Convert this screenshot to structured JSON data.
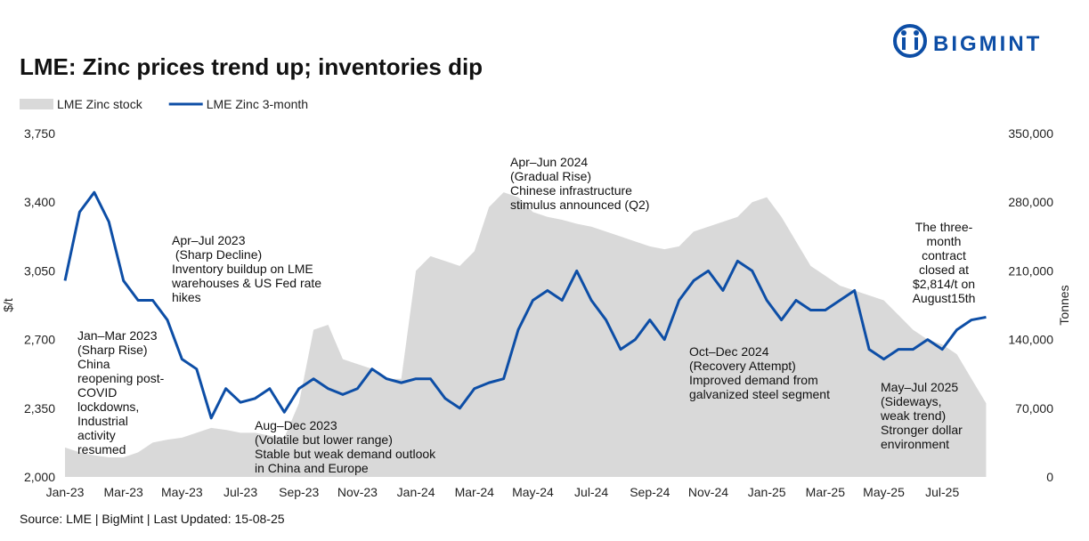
{
  "brand": "BIGMINT",
  "chart_data": {
    "type": "line",
    "title": "LME: Zinc prices trend up; inventories dip",
    "source": "Source: LME | BigMint | Last Updated: 15-08-25",
    "y_label": "$/t",
    "y2_label": "Tonnes",
    "categories": [
      "Jan-23",
      null,
      null,
      null,
      "Mar-23",
      null,
      null,
      null,
      "May-23",
      null,
      null,
      null,
      "Jul-23",
      null,
      null,
      null,
      "Sep-23",
      null,
      null,
      null,
      "Nov-23",
      null,
      null,
      null,
      "Jan-24",
      null,
      null,
      null,
      "Mar-24",
      null,
      null,
      null,
      "May-24",
      null,
      null,
      null,
      "Jul-24",
      null,
      null,
      null,
      "Sep-24",
      null,
      null,
      null,
      "Nov-24",
      null,
      null,
      null,
      "Jan-25",
      null,
      null,
      null,
      "Mar-25",
      null,
      null,
      null,
      "May-25",
      null,
      null,
      null,
      "Jul-25",
      null,
      null,
      null
    ],
    "series": [
      {
        "name": "LME Zinc stock",
        "type": "area",
        "axis": "y2",
        "color": "#d9d9d9",
        "values": [
          30000,
          25000,
          22000,
          20000,
          20000,
          25000,
          35000,
          38000,
          40000,
          45000,
          50000,
          48000,
          45000,
          45000,
          42000,
          40000,
          75000,
          150000,
          155000,
          120000,
          115000,
          110000,
          100000,
          100000,
          210000,
          225000,
          220000,
          215000,
          230000,
          275000,
          290000,
          285000,
          270000,
          265000,
          262000,
          258000,
          255000,
          250000,
          245000,
          240000,
          235000,
          232000,
          235000,
          250000,
          255000,
          260000,
          265000,
          280000,
          285000,
          265000,
          240000,
          215000,
          205000,
          195000,
          190000,
          185000,
          180000,
          165000,
          150000,
          140000,
          135000,
          125000,
          100000,
          75000
        ]
      },
      {
        "name": "LME Zinc 3-month",
        "type": "line",
        "color": "#0d4ea6",
        "values": [
          3000,
          3350,
          3450,
          3300,
          3000,
          2900,
          2900,
          2800,
          2600,
          2550,
          2300,
          2450,
          2380,
          2400,
          2450,
          2330,
          2450,
          2500,
          2450,
          2420,
          2450,
          2550,
          2500,
          2480,
          2500,
          2500,
          2400,
          2350,
          2450,
          2480,
          2500,
          2750,
          2900,
          2950,
          2900,
          3050,
          2900,
          2800,
          2650,
          2700,
          2800,
          2700,
          2900,
          3000,
          3050,
          2950,
          3100,
          3050,
          2900,
          2800,
          2900,
          2850,
          2850,
          2900,
          2950,
          2650,
          2600,
          2650,
          2650,
          2700,
          2650,
          2750,
          2800,
          2814
        ]
      }
    ],
    "ylim": [
      2000,
      3750
    ],
    "yticks": [
      {
        "value": 2000,
        "label": "2,000"
      },
      {
        "value": 2350,
        "label": "2,350"
      },
      {
        "value": 2700,
        "label": "2,700"
      },
      {
        "value": 3050,
        "label": "3,050"
      },
      {
        "value": 3400,
        "label": "3,400"
      },
      {
        "value": 3750,
        "label": "3,750"
      }
    ],
    "y2lim": [
      0,
      350000
    ],
    "y2ticks": [
      0,
      {
        "value": 70000,
        "label": "70,000"
      },
      {
        "value": 140000,
        "label": "140,000"
      },
      {
        "value": 210000,
        "label": "210,000"
      },
      {
        "value": 280000,
        "label": "280,000"
      },
      {
        "value": 350000,
        "label": "350,000"
      }
    ],
    "legend": "top-left",
    "annotations": [
      [
        "Jan–Mar 2023",
        "(Sharp Rise)",
        "China",
        "reopening post-",
        "COVID",
        "lockdowns,",
        "Industrial",
        "activity",
        "resumed"
      ],
      [
        "Apr–Jul 2023",
        " (Sharp Decline)",
        "Inventory buildup on LME",
        "warehouses & US Fed rate",
        "hikes"
      ],
      [
        "Aug–Dec 2023",
        "(Volatile but lower range)",
        "Stable but weak demand outlook",
        "in China and Europe"
      ],
      [
        "Apr–Jun 2024",
        "(Gradual Rise)",
        "Chinese infrastructure",
        "stimulus announced (Q2)"
      ],
      [
        "Oct–Dec 2024",
        "(Recovery Attempt)",
        "Improved demand from",
        "galvanized steel segment"
      ],
      [
        "May–Jul 2025",
        "(Sideways,",
        "weak trend)",
        "Stronger dollar",
        "environment"
      ],
      [
        "The three-",
        "month",
        "contract",
        "closed at",
        "$2,814/t on",
        "August15th"
      ]
    ]
  }
}
